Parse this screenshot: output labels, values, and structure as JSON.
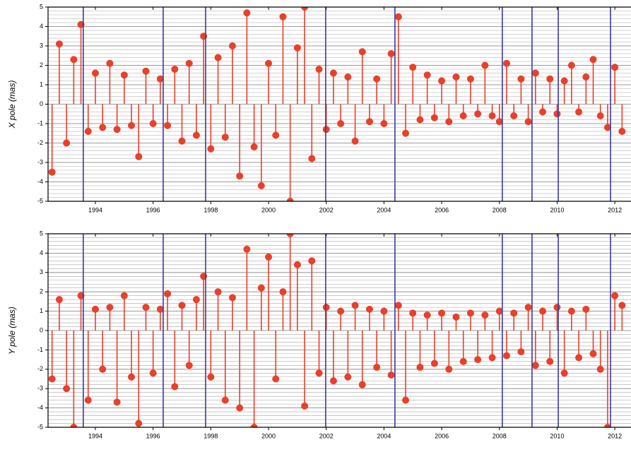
{
  "chart_data": [
    {
      "type": "stem",
      "ylabel": "X pole (mas)",
      "color": "#e8402a",
      "vline_color": "#3a3aa0",
      "xlim": [
        1992.36,
        2012.56
      ],
      "xticks": [
        1994,
        1996,
        1998,
        2000,
        2002,
        2004,
        2006,
        2008,
        2010,
        2012
      ],
      "ylim": [
        -5,
        5
      ],
      "yticks": [
        -5,
        -4,
        -3,
        -2,
        -1,
        0,
        1,
        2,
        3,
        4,
        5
      ],
      "grid": true,
      "minor_grid_step": 0.2,
      "vlines": [
        1993.58,
        1996.35,
        1997.82,
        2001.98,
        2004.38,
        2008.1,
        2009.13,
        2010.04,
        2011.85
      ],
      "x": [
        1992.5,
        1992.75,
        1993,
        1993.25,
        1993.5,
        1993.75,
        1994,
        1994.25,
        1994.5,
        1994.75,
        1995,
        1995.25,
        1995.5,
        1995.75,
        1996,
        1996.25,
        1996.5,
        1996.75,
        1997,
        1997.25,
        1997.5,
        1997.75,
        1998,
        1998.25,
        1998.5,
        1998.75,
        1999,
        1999.25,
        1999.5,
        1999.75,
        2000,
        2000.25,
        2000.5,
        2000.75,
        2001,
        2001.25,
        2001.5,
        2001.75,
        2002,
        2002.25,
        2002.5,
        2002.75,
        2003,
        2003.25,
        2003.5,
        2003.75,
        2004,
        2004.25,
        2004.5,
        2004.75,
        2005,
        2005.25,
        2005.5,
        2005.75,
        2006,
        2006.25,
        2006.5,
        2006.75,
        2007,
        2007.25,
        2007.5,
        2007.75,
        2008,
        2008.25,
        2008.5,
        2008.75,
        2009,
        2009.25,
        2009.5,
        2009.75,
        2010,
        2010.25,
        2010.5,
        2010.75,
        2011,
        2011.25,
        2011.5,
        2011.75,
        2012,
        2012.25
      ],
      "values": [
        -3.5,
        3.1,
        -2.0,
        2.3,
        4.1,
        -1.4,
        1.6,
        -1.2,
        2.1,
        -1.3,
        1.5,
        -1.1,
        -2.7,
        1.7,
        -1.0,
        1.3,
        -1.1,
        1.8,
        -1.9,
        2.1,
        -1.6,
        3.5,
        -2.3,
        2.4,
        -1.7,
        3.0,
        -3.7,
        4.7,
        -2.2,
        -4.2,
        2.1,
        -1.6,
        4.5,
        -5,
        2.9,
        5,
        -2.8,
        1.8,
        -1.3,
        1.6,
        -1.0,
        1.4,
        -1.9,
        2.7,
        -0.9,
        1.3,
        -1.0,
        2.6,
        4.5,
        -1.5,
        1.9,
        -0.8,
        1.5,
        -0.7,
        1.2,
        -0.9,
        1.4,
        -0.6,
        1.3,
        -0.5,
        2.0,
        -0.6,
        -0.9,
        2.1,
        -0.6,
        1.3,
        -0.9,
        1.6,
        -0.4,
        1.3,
        -0.5,
        1.2,
        2.0,
        -0.4,
        1.4,
        2.3,
        -0.6,
        -1.2,
        1.9,
        -1.4
      ]
    },
    {
      "type": "stem",
      "ylabel": "Y pole (mas)",
      "color": "#e8402a",
      "vline_color": "#3a3aa0",
      "xlim": [
        1992.36,
        2012.56
      ],
      "xticks": [
        1994,
        1996,
        1998,
        2000,
        2002,
        2004,
        2006,
        2008,
        2010,
        2012
      ],
      "ylim": [
        -5,
        5
      ],
      "yticks": [
        -5,
        -4,
        -3,
        -2,
        -1,
        0,
        1,
        2,
        3,
        4,
        5
      ],
      "grid": true,
      "minor_grid_step": 0.2,
      "vlines": [
        1993.58,
        1996.35,
        1997.82,
        2001.98,
        2004.38,
        2008.1,
        2009.13,
        2010.04,
        2011.85
      ],
      "x": [
        1992.5,
        1992.75,
        1993,
        1993.25,
        1993.5,
        1993.75,
        1994,
        1994.25,
        1994.5,
        1994.75,
        1995,
        1995.25,
        1995.5,
        1995.75,
        1996,
        1996.25,
        1996.5,
        1996.75,
        1997,
        1997.25,
        1997.5,
        1997.75,
        1998,
        1998.25,
        1998.5,
        1998.75,
        1999,
        1999.25,
        1999.5,
        1999.75,
        2000,
        2000.25,
        2000.5,
        2000.75,
        2001,
        2001.25,
        2001.5,
        2001.75,
        2002,
        2002.25,
        2002.5,
        2002.75,
        2003,
        2003.25,
        2003.5,
        2003.75,
        2004,
        2004.25,
        2004.5,
        2004.75,
        2005,
        2005.25,
        2005.5,
        2005.75,
        2006,
        2006.25,
        2006.5,
        2006.75,
        2007,
        2007.25,
        2007.5,
        2007.75,
        2008,
        2008.25,
        2008.5,
        2008.75,
        2009,
        2009.25,
        2009.5,
        2009.75,
        2010,
        2010.25,
        2010.5,
        2010.75,
        2011,
        2011.25,
        2011.5,
        2011.75,
        2012,
        2012.25
      ],
      "values": [
        -2.5,
        1.6,
        -3.0,
        -5,
        1.8,
        -3.6,
        1.1,
        -2.0,
        1.2,
        -3.7,
        1.8,
        -2.4,
        -4.8,
        1.2,
        -2.2,
        1.1,
        1.9,
        -2.9,
        1.3,
        -1.8,
        1.6,
        2.8,
        -2.4,
        2.0,
        -3.6,
        1.7,
        -4.0,
        4.2,
        -5,
        2.2,
        3.8,
        -2.5,
        2.0,
        5,
        3.4,
        -3.9,
        3.6,
        -2.2,
        1.2,
        -2.6,
        1.0,
        -2.4,
        1.3,
        -2.8,
        1.1,
        -1.9,
        1.0,
        -2.3,
        1.3,
        -3.6,
        0.9,
        -1.9,
        0.8,
        -1.7,
        0.9,
        -2.0,
        0.7,
        -1.6,
        0.9,
        -1.5,
        0.8,
        -1.4,
        1.0,
        -1.3,
        0.9,
        -1.1,
        1.2,
        -1.8,
        1.0,
        -1.6,
        1.2,
        -2.2,
        1.0,
        -1.4,
        1.1,
        -1.2,
        -2.0,
        -5,
        1.8,
        1.3
      ]
    }
  ]
}
